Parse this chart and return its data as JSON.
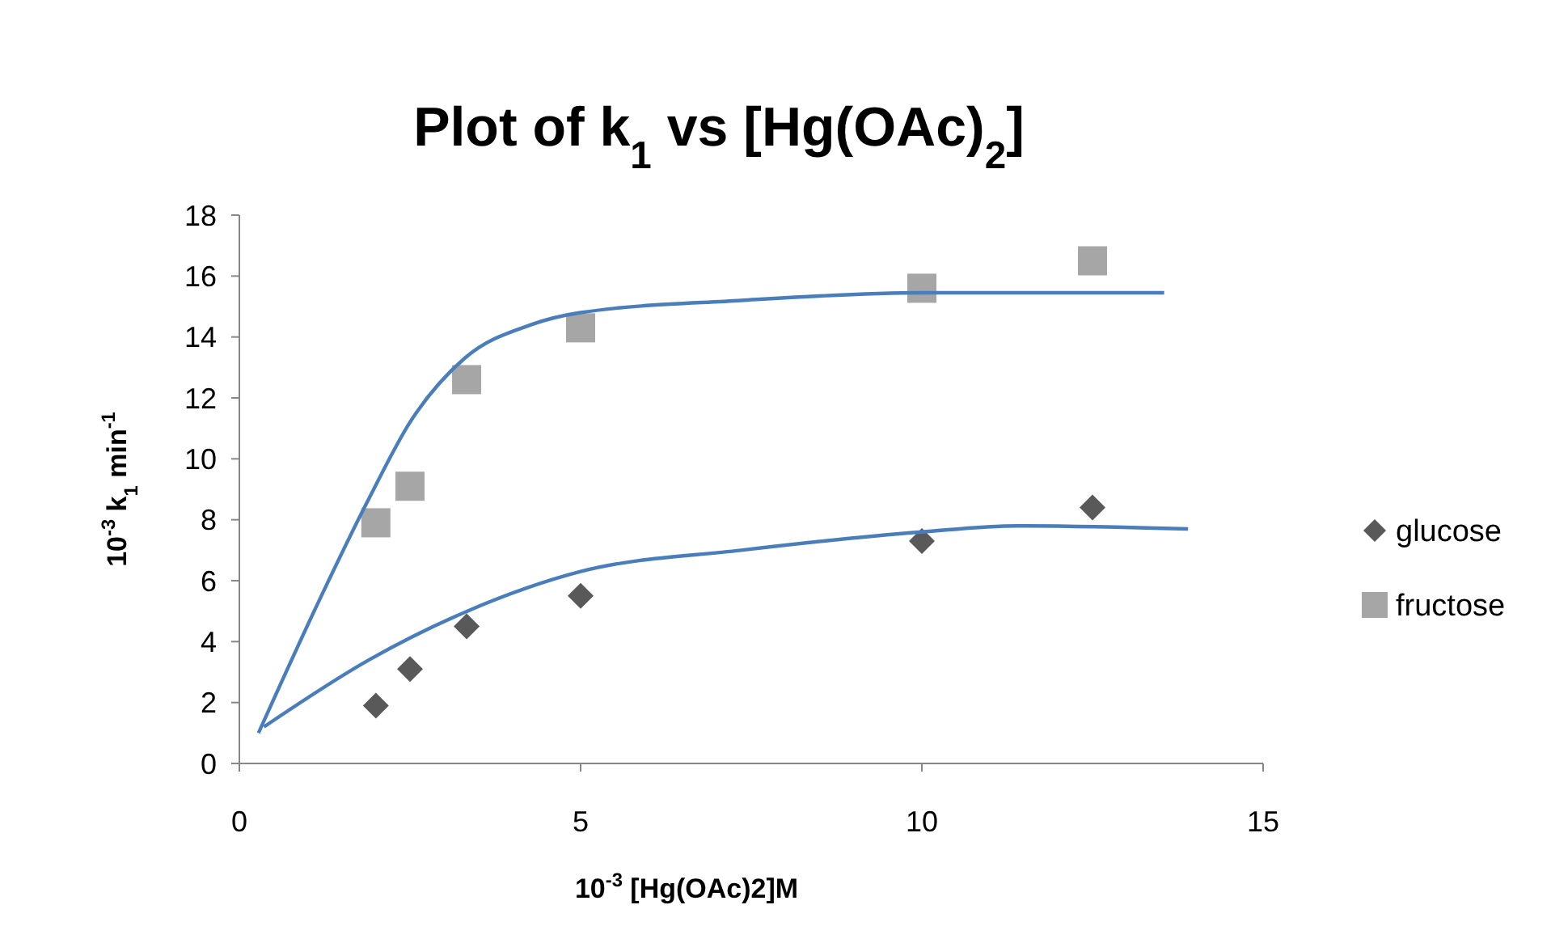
{
  "chart_data": {
    "type": "scatter",
    "title": "Plot of k$_{1}$ vs [Hg(OAc)$_{2}$]",
    "xlabel": "10$^{-3}$ [Hg(OAc)2]M",
    "ylabel": "10$^{-3}$ k$_{1}$ min$^{-1}$",
    "xlim": [
      0,
      15
    ],
    "ylim": [
      0,
      18
    ],
    "xticks": [
      0,
      5,
      10,
      15
    ],
    "yticks": [
      0,
      2,
      4,
      6,
      8,
      10,
      12,
      14,
      16,
      18
    ],
    "grid": false,
    "legend": "right",
    "x": [
      2,
      2.5,
      3.33,
      5,
      10,
      12.5
    ],
    "series": [
      {
        "name": "glucose",
        "color": "#595959",
        "marker": "diamond",
        "values": [
          1.9,
          3.1,
          4.5,
          5.5,
          7.3,
          8.4
        ]
      },
      {
        "name": "fructose",
        "color": "#a6a6a6",
        "marker": "square",
        "values": [
          7.9,
          9.1,
          12.6,
          14.3,
          15.6,
          16.5
        ]
      },
      {
        "type": "line",
        "color": "#4a7ebb",
        "marker": "none",
        "x": [
          0.36,
          1.9,
          3.34,
          5,
          7.35,
          10,
          11.4,
          13.9
        ],
        "values": [
          1.2,
          3.4,
          5.0,
          6.3,
          7.0,
          7.6,
          7.8,
          7.7
        ]
      },
      {
        "type": "line",
        "color": "#4a7ebb",
        "marker": "none",
        "x": [
          0.28,
          1.18,
          1.9,
          2.5,
          3.3,
          4.27,
          5,
          7.35,
          10,
          13.55
        ],
        "values": [
          1.0,
          5.4,
          8.7,
          11.2,
          13.3,
          14.4,
          14.8,
          15.2,
          15.45,
          15.45
        ]
      }
    ]
  }
}
